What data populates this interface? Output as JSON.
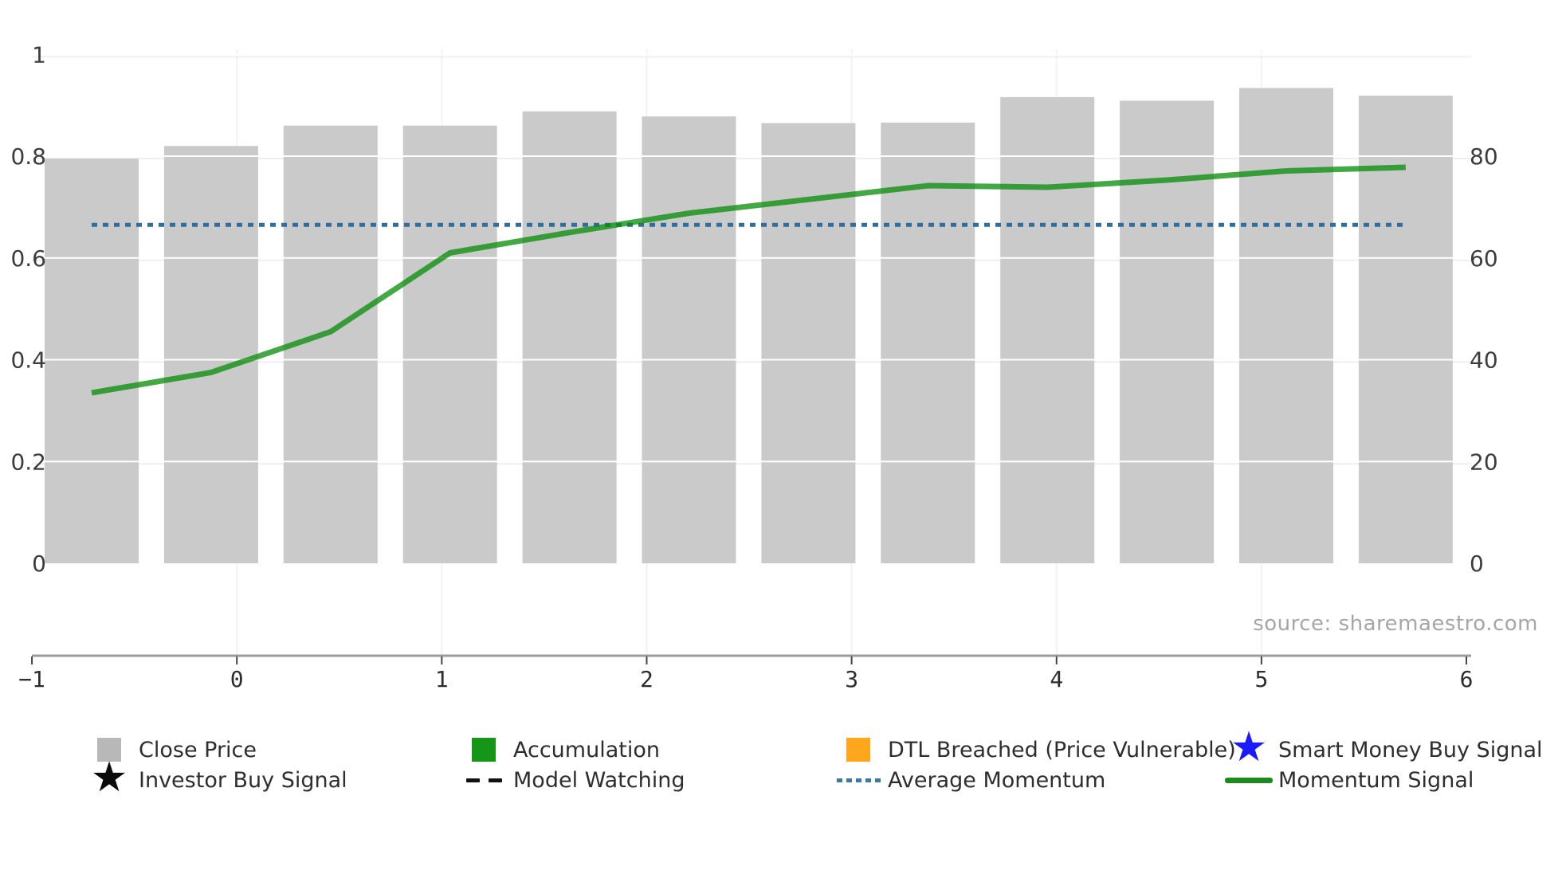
{
  "source": {
    "text": "source: sharemaestro.com"
  },
  "chart_data": {
    "type": "bar+line",
    "title": "",
    "x_axis": {
      "tick_labels": [
        "−1",
        "0",
        "1",
        "2",
        "3",
        "4",
        "5",
        "6"
      ],
      "tick_values": [
        -1,
        0,
        1,
        2,
        3,
        4,
        5,
        6
      ]
    },
    "left_axis": {
      "tick_labels": [
        "0",
        "0.2",
        "0.4",
        "0.6",
        "0.8",
        "1"
      ],
      "tick_values": [
        0,
        0.2,
        0.4,
        0.6,
        0.8,
        1
      ],
      "range": [
        0,
        1.05
      ]
    },
    "right_axis": {
      "tick_labels": [
        "0",
        "20",
        "40",
        "60",
        "80"
      ],
      "tick_values": [
        0,
        20,
        40,
        60,
        80
      ],
      "range": [
        0,
        105
      ]
    },
    "grid": true,
    "legend_position": "bottom",
    "series": [
      {
        "name": "Close Price",
        "type": "bar",
        "axis": "right",
        "color": "#cacaca",
        "values": [
          79.5,
          82.0,
          86.0,
          86.0,
          88.8,
          87.8,
          86.5,
          86.6,
          91.6,
          90.9,
          93.4,
          91.9
        ]
      },
      {
        "name": "Momentum Signal",
        "type": "line",
        "axis": "left",
        "color": "rgba(5,140,5,0.75)",
        "values": [
          0.335,
          0.375,
          0.455,
          0.61,
          0.65,
          0.688,
          0.715,
          0.742,
          0.739,
          0.753,
          0.771,
          0.778
        ]
      },
      {
        "name": "Average Momentum",
        "type": "dotted-hline",
        "axis": "left",
        "color": "#2e6f9f",
        "value": 0.665
      }
    ]
  },
  "colors": {
    "bar_fill": "#cacaca",
    "grid_line": "#edeff4",
    "grid_line_over_bar": "#ffffff",
    "axis_line": "#9b9b9b",
    "axis_text": "#3c3c3c",
    "x_axis_text": "#2d2d2d"
  },
  "legend": {
    "items": [
      {
        "label": "Close Price",
        "icon": "square",
        "color": "#b8b8b8",
        "row": 0,
        "col": 0
      },
      {
        "label": "Accumulation",
        "icon": "square",
        "color": "#169616",
        "row": 0,
        "col": 1
      },
      {
        "label": "DTL Breached (Price Vulnerable)",
        "icon": "square",
        "color": "#ffa71c",
        "row": 0,
        "col": 2
      },
      {
        "label": "Smart Money Buy Signal",
        "icon": "star",
        "color": "#1a1aff",
        "row": 0,
        "col": 3
      },
      {
        "label": "Investor Buy Signal",
        "icon": "star",
        "color": "#0a0a0a",
        "row": 1,
        "col": 0
      },
      {
        "label": "Model Watching",
        "icon": "dashes",
        "color": "#111111",
        "row": 1,
        "col": 1
      },
      {
        "label": "Average Momentum",
        "icon": "dots",
        "color": "#3c7aa5",
        "row": 1,
        "col": 2
      },
      {
        "label": "Momentum Signal",
        "icon": "line",
        "color": "#1d8a1d",
        "row": 1,
        "col": 3
      }
    ]
  }
}
